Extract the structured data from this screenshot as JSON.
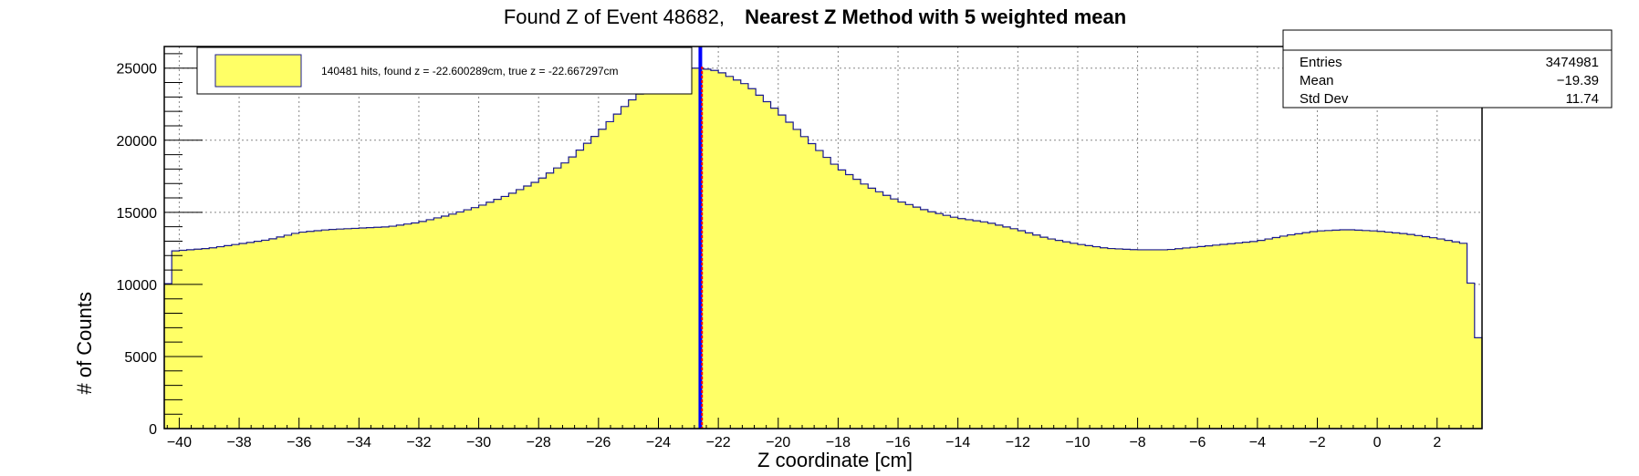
{
  "chart_data": {
    "type": "histogram",
    "title_plain": "Found Z of Event 48682,",
    "title_bold": "Nearest Z Method with 5 weighted mean",
    "xlabel": "Z coordinate [cm]",
    "ylabel": "# of Counts",
    "xlim": [
      -40.5,
      3.5
    ],
    "ylim": [
      0,
      26500
    ],
    "x_ticks": [
      -40,
      -38,
      -36,
      -34,
      -32,
      -30,
      -28,
      -26,
      -24,
      -22,
      -20,
      -18,
      -16,
      -14,
      -12,
      -10,
      -8,
      -6,
      -4,
      -2,
      0,
      2
    ],
    "y_ticks": [
      0,
      5000,
      10000,
      15000,
      20000,
      25000
    ],
    "grid": true,
    "fill_color": "#ffff66",
    "line_color": "#1b1b8f",
    "found_z_color": "#0000ff",
    "true_z_color": "#ff0000",
    "found_z": -22.600289,
    "true_z": -22.667297,
    "control_points": [
      [
        -40.5,
        6300
      ],
      [
        -40.3,
        12300
      ],
      [
        -39,
        12500
      ],
      [
        -38,
        12800
      ],
      [
        -37,
        13100
      ],
      [
        -36,
        13600
      ],
      [
        -35,
        13800
      ],
      [
        -34,
        13900
      ],
      [
        -33,
        14000
      ],
      [
        -32,
        14300
      ],
      [
        -31,
        14800
      ],
      [
        -30,
        15400
      ],
      [
        -29,
        16200
      ],
      [
        -28,
        17200
      ],
      [
        -27,
        18600
      ],
      [
        -26,
        20500
      ],
      [
        -25,
        22600
      ],
      [
        -24,
        24200
      ],
      [
        -23.2,
        25000
      ],
      [
        -22.6,
        25000
      ],
      [
        -22,
        24800
      ],
      [
        -21,
        23800
      ],
      [
        -20,
        22000
      ],
      [
        -19,
        20000
      ],
      [
        -18,
        18100
      ],
      [
        -17,
        16800
      ],
      [
        -16,
        15800
      ],
      [
        -15,
        15100
      ],
      [
        -14,
        14600
      ],
      [
        -13,
        14300
      ],
      [
        -12,
        13800
      ],
      [
        -11,
        13200
      ],
      [
        -10,
        12800
      ],
      [
        -9,
        12500
      ],
      [
        -8,
        12400
      ],
      [
        -7,
        12400
      ],
      [
        -6,
        12600
      ],
      [
        -5,
        12800
      ],
      [
        -4,
        13000
      ],
      [
        -3,
        13400
      ],
      [
        -2,
        13700
      ],
      [
        -1,
        13800
      ],
      [
        0,
        13700
      ],
      [
        1,
        13500
      ],
      [
        2,
        13200
      ],
      [
        3,
        12800
      ],
      [
        3.3,
        6300
      ],
      [
        3.5,
        6300
      ]
    ],
    "legend": {
      "label": "140481 hits, found z = -22.600289cm, true z = -22.667297cm"
    },
    "stats": {
      "entries_label": "Entries",
      "entries_value": "3474981",
      "mean_label": "Mean",
      "mean_value": "−19.39",
      "stddev_label": "Std Dev",
      "stddev_value": "11.74"
    }
  }
}
